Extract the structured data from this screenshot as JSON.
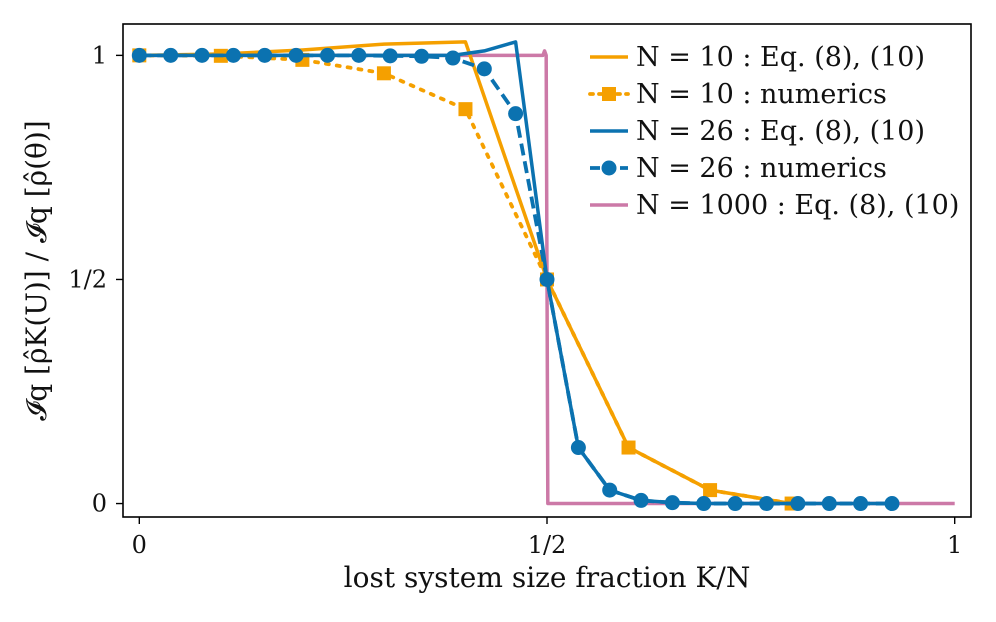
{
  "chart_data": {
    "type": "line",
    "xlabel": "lost system size fraction K/N",
    "ylabel": "𝓘q [ρ̂K(U)] / 𝓘q [ρ̂(θ)]",
    "xlim": [
      -0.02,
      1.02
    ],
    "ylim": [
      -0.03,
      1.07
    ],
    "x_ticks": [
      {
        "value": 0,
        "label": "0"
      },
      {
        "value": 0.5,
        "label": "1/2"
      },
      {
        "value": 1,
        "label": "1"
      }
    ],
    "y_ticks": [
      {
        "value": 0,
        "label": "0"
      },
      {
        "value": 0.5,
        "label": "1/2"
      },
      {
        "value": 1,
        "label": "1"
      }
    ],
    "grid": false,
    "legend_position": "top-right",
    "series": [
      {
        "name": "N = 10 : Eq. (8), (10)",
        "color": "#f5a000",
        "style": "solid",
        "marker": "none",
        "x": [
          0,
          0.1,
          0.2,
          0.3,
          0.4,
          0.5,
          0.6,
          0.7,
          0.8
        ],
        "y": [
          1,
          1.003,
          1.012,
          1.025,
          1.03,
          0.5,
          0.125,
          0.03,
          0.0
        ]
      },
      {
        "name": "N = 10 : numerics",
        "color": "#f5a000",
        "style": "dotted",
        "marker": "square",
        "x": [
          0,
          0.1,
          0.2,
          0.3,
          0.4,
          0.5,
          0.6,
          0.7,
          0.8
        ],
        "y": [
          1.0,
          0.999,
          0.99,
          0.96,
          0.88,
          0.5,
          0.125,
          0.03,
          0.0
        ]
      },
      {
        "name": "N = 26 : Eq. (8), (10)",
        "color": "#0b72b0",
        "style": "solid",
        "marker": "none",
        "x": [
          0,
          0.0385,
          0.0769,
          0.1154,
          0.1538,
          0.1923,
          0.2308,
          0.2692,
          0.3077,
          0.3462,
          0.3846,
          0.4231,
          0.4615,
          0.5,
          0.5385,
          0.5769,
          0.6154,
          0.6538,
          0.6923,
          0.7308,
          0.7692,
          0.8077,
          0.8462,
          0.8846,
          0.9231
        ],
        "y": [
          1,
          1,
          1,
          1,
          1,
          1,
          1,
          1,
          1,
          1,
          1.0,
          1.01,
          1.03,
          0.5,
          0.125,
          0.03,
          0.007,
          0.002,
          0.0,
          0.0,
          0.0,
          0.0,
          0.0,
          0.0,
          0.0
        ]
      },
      {
        "name": "N = 26 : numerics",
        "color": "#0b72b0",
        "style": "dashed",
        "marker": "circle",
        "x": [
          0,
          0.0385,
          0.0769,
          0.1154,
          0.1538,
          0.1923,
          0.2308,
          0.2692,
          0.3077,
          0.3462,
          0.3846,
          0.4231,
          0.4615,
          0.5,
          0.5385,
          0.5769,
          0.6154,
          0.6538,
          0.6923,
          0.7308,
          0.7692,
          0.8077,
          0.8462,
          0.8846,
          0.9231
        ],
        "y": [
          1,
          1,
          1,
          1,
          1,
          1,
          1,
          1,
          0.999,
          0.998,
          0.994,
          0.97,
          0.87,
          0.5,
          0.125,
          0.03,
          0.007,
          0.002,
          0.0,
          0.0,
          0.0,
          0.0,
          0.0,
          0.0,
          0.0
        ]
      },
      {
        "name": "N = 1000 : Eq. (8), (10)",
        "color": "#cc79a7",
        "style": "solid",
        "marker": "none",
        "x": [
          0,
          0.495,
          0.497,
          0.499,
          0.5,
          0.501,
          0.503,
          0.505,
          1
        ],
        "y": [
          1,
          1.0,
          1.01,
          1.0,
          0.5,
          0.0,
          0.0,
          0.0,
          0.0
        ]
      }
    ]
  }
}
